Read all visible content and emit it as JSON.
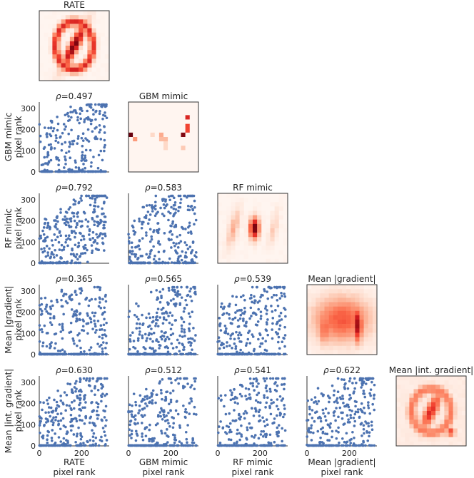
{
  "figure": {
    "variables": [
      "RATE",
      "GBM mimic",
      "RF mimic",
      "Mean |gradient|",
      "Mean |int. gradient|"
    ],
    "y_axis_suffix": "pixel rank",
    "x_axis_suffix": "pixel rank",
    "rho_symbol": "ρ"
  },
  "chart_data": {
    "type": "scatter-matrix",
    "axis_range": [
      0,
      330
    ],
    "ticks": [
      0,
      100,
      200,
      300
    ],
    "x_ticks": [
      0,
      200
    ],
    "n_points": 320,
    "diagonal_type": "heatmap",
    "heatmap_colormap": "Reds",
    "correlations": [
      {
        "row": "GBM mimic",
        "col": "RATE",
        "rho": 0.497,
        "label": "=0.497"
      },
      {
        "row": "RF mimic",
        "col": "RATE",
        "rho": 0.792,
        "label": "=0.792"
      },
      {
        "row": "RF mimic",
        "col": "GBM mimic",
        "rho": 0.583,
        "label": "=0.583"
      },
      {
        "row": "Mean |gradient|",
        "col": "RATE",
        "rho": 0.365,
        "label": "=0.365"
      },
      {
        "row": "Mean |gradient|",
        "col": "GBM mimic",
        "rho": 0.565,
        "label": "=0.565"
      },
      {
        "row": "Mean |gradient|",
        "col": "RF mimic",
        "rho": 0.539,
        "label": "=0.539"
      },
      {
        "row": "Mean |int. gradient|",
        "col": "RATE",
        "rho": 0.63,
        "label": "=0.630"
      },
      {
        "row": "Mean |int. gradient|",
        "col": "GBM mimic",
        "rho": 0.512,
        "label": "=0.512"
      },
      {
        "row": "Mean |int. gradient|",
        "col": "RF mimic",
        "rho": 0.541,
        "label": "=0.541"
      },
      {
        "row": "Mean |int. gradient|",
        "col": "Mean |gradient|",
        "rho": 0.622,
        "label": "=0.622"
      }
    ],
    "point_color": "#4c72b0",
    "heatmap_colors": {
      "low": "#fff5f0",
      "high": "#67000d"
    }
  }
}
